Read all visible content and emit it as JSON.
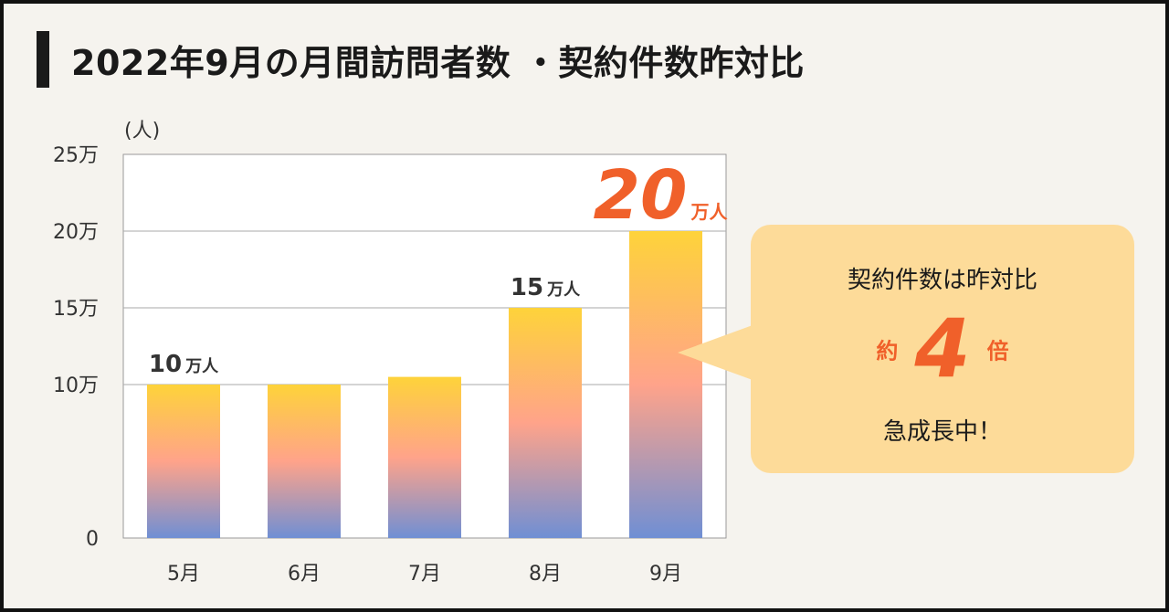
{
  "title": "2022年9月の月間訪問者数 ・契約件数昨対比",
  "chart_data": {
    "type": "bar",
    "unit_label": "(人)",
    "categories": [
      "5月",
      "6月",
      "7月",
      "8月",
      "9月"
    ],
    "values": [
      100000,
      100000,
      105000,
      150000,
      200000
    ],
    "ylim": [
      0,
      250000
    ],
    "yticks": [
      0,
      100000,
      150000,
      200000,
      250000
    ],
    "ytick_labels": [
      "0",
      "10万",
      "15万",
      "20万",
      "25万"
    ],
    "grid": true,
    "data_labels": [
      {
        "index": 0,
        "number": "10",
        "unit": "万人"
      },
      {
        "index": 3,
        "number": "15",
        "unit": "万人"
      },
      {
        "index": 4,
        "number": "20",
        "unit": "万人"
      }
    ],
    "colors": {
      "bar_top": "#fed33a",
      "bar_middle": "#ffa38a",
      "bar_bottom": "#6f8fd4",
      "highlight": "#f0602a",
      "label": "#333333"
    }
  },
  "callout": {
    "line1": "契約件数は昨対比",
    "prefix": "約",
    "number": "4",
    "suffix": "倍",
    "line3": "急成長中！"
  }
}
